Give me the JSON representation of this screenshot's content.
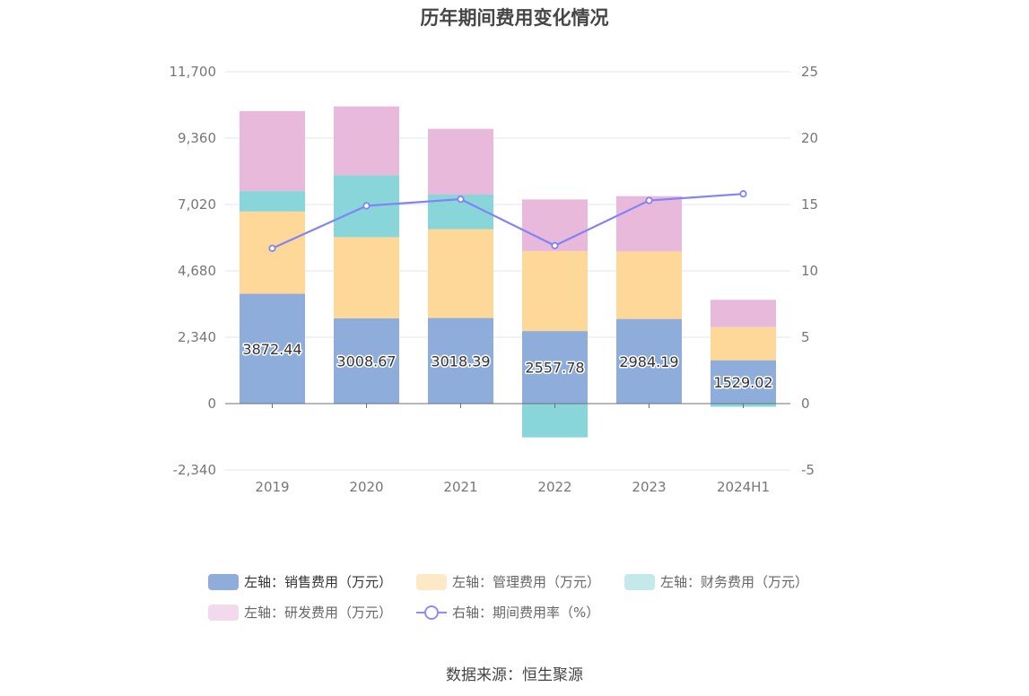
{
  "title": "历年期间费用变化情况",
  "source": "数据来源：恒生聚源",
  "chart_data": {
    "type": "bar",
    "stacked": true,
    "categories": [
      "2019",
      "2020",
      "2021",
      "2022",
      "2023",
      "2024H1"
    ],
    "left_axis": {
      "min": -2340,
      "max": 11700,
      "ticks": [
        "-2,340",
        "0",
        "2,340",
        "4,680",
        "7,020",
        "9,360",
        "11,700"
      ],
      "tick_values": [
        -2340,
        0,
        2340,
        4680,
        7020,
        9360,
        11700
      ]
    },
    "right_axis": {
      "min": -5,
      "max": 25,
      "ticks": [
        "-5",
        "0",
        "5",
        "10",
        "15",
        "20",
        "25"
      ],
      "tick_values": [
        -5,
        0,
        5,
        10,
        15,
        20,
        25
      ]
    },
    "grid": true,
    "legend_position": "bottom",
    "series": [
      {
        "name": "左轴：销售费用（万元）",
        "color": "#8eaddb",
        "values": [
          3872.44,
          3008.67,
          3018.39,
          2557.78,
          2984.19,
          1529.02
        ],
        "labels": [
          "3872.44",
          "3008.67",
          "3018.39",
          "2557.78",
          "2984.19",
          "1529.02"
        ]
      },
      {
        "name": "左轴：管理费用（万元）",
        "color": "#fed899",
        "values": [
          2900,
          2860,
          3130,
          2820,
          2380,
          1170
        ]
      },
      {
        "name": "左轴：财务费用（万元）",
        "color": "#88d6da",
        "values": [
          720,
          2180,
          1220,
          -1190,
          0,
          -110
        ]
      },
      {
        "name": "左轴：研发费用（万元）",
        "color": "#e8b9da",
        "values": [
          2820,
          2430,
          2320,
          1820,
          1950,
          960
        ]
      },
      {
        "name": "右轴：期间费用率（%）",
        "color": "#8284f5",
        "type": "line",
        "axis": "right",
        "values": [
          11.7,
          14.9,
          15.4,
          11.9,
          15.3,
          15.8
        ]
      }
    ]
  }
}
